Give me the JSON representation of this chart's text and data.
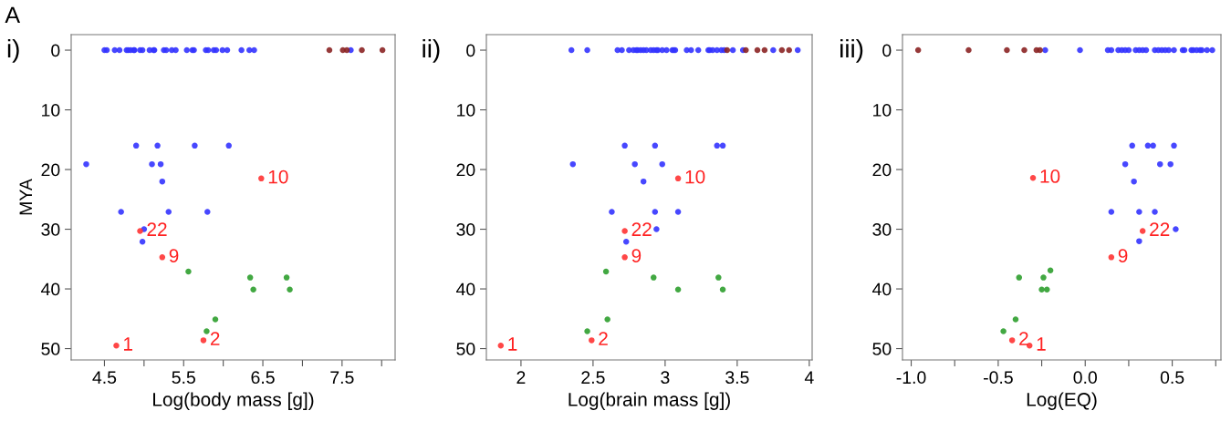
{
  "chart_data": [
    {
      "type": "scatter",
      "title": "i)",
      "xlabel": "Log(body mass [g])",
      "ylabel": "MYA",
      "annotations": [
        "A",
        {
          "text": "10",
          "x": 6.48,
          "y": 21.5
        },
        {
          "text": "22",
          "x": 4.95,
          "y": 30.3
        },
        {
          "text": "9",
          "x": 5.23,
          "y": 34.7
        },
        {
          "text": "2",
          "x": 5.75,
          "y": 48.6
        },
        {
          "text": "1",
          "x": 4.65,
          "y": 49.5
        }
      ],
      "xlim": [
        4.08,
        8.17
      ],
      "xticks": [
        4.5,
        {
          "value": 5,
          "label": null
        },
        5.5,
        {
          "value": 6,
          "label": null
        },
        6.5,
        {
          "value": 7,
          "label": null
        },
        7.5,
        {
          "value": 8,
          "label": null
        }
      ],
      "ylim": [
        51.9,
        -2.6
      ],
      "yticks": [
        0,
        10,
        20,
        30,
        40,
        50
      ],
      "grid": false,
      "legend": false,
      "marker": "circle",
      "series": [
        {
          "color": "#3333ff",
          "x": [
            4.5,
            4.53,
            4.63,
            4.69,
            4.78,
            4.8,
            4.83,
            4.87,
            4.88,
            4.95,
            4.98,
            5.07,
            5.12,
            5.13,
            5.25,
            5.28,
            5.35,
            5.4,
            5.54,
            5.61,
            5.63,
            5.78,
            5.81,
            5.88,
            5.91,
            5.99,
            6.05,
            6.23,
            6.33,
            6.39,
            7.61,
            4.27,
            4.9,
            5.17,
            5.64,
            6.07,
            5.1,
            5.21,
            5.23,
            4.71,
            5.31,
            5.8,
            5.0,
            4.98
          ],
          "values": [
            0,
            0,
            0,
            0,
            0,
            0,
            0,
            0,
            0,
            0,
            0,
            0,
            0,
            0,
            0,
            0,
            0,
            0,
            0,
            0,
            0,
            0,
            0,
            0,
            0,
            0,
            0,
            0,
            0,
            0,
            0,
            19.1,
            16.0,
            16.0,
            16.0,
            16.0,
            19.1,
            19.1,
            22.0,
            27.1,
            27.1,
            27.1,
            30.0,
            32.1
          ]
        },
        {
          "color": "#8b2323",
          "x": [
            7.34,
            7.51,
            7.56,
            7.75,
            8.01
          ],
          "values": [
            0,
            0,
            0,
            0,
            0
          ]
        },
        {
          "color": "#2e9e2e",
          "x": [
            5.56,
            6.34,
            6.8,
            6.38,
            6.84,
            5.9,
            5.79
          ],
          "values": [
            37.1,
            38.1,
            38.1,
            40.1,
            40.1,
            45.1,
            47.1
          ]
        },
        {
          "color": "#ff3333",
          "x": [
            6.48,
            4.95,
            5.23,
            5.75,
            4.65
          ],
          "values": [
            21.5,
            30.3,
            34.7,
            48.6,
            49.5
          ]
        }
      ]
    },
    {
      "type": "scatter",
      "title": "ii)",
      "xlabel": "Log(brain mass [g])",
      "annotations": [
        {
          "text": "10",
          "x": 3.09,
          "y": 21.5
        },
        {
          "text": "22",
          "x": 2.72,
          "y": 30.3
        },
        {
          "text": "9",
          "x": 2.72,
          "y": 34.7
        },
        {
          "text": "2",
          "x": 2.49,
          "y": 48.6
        },
        {
          "text": "1",
          "x": 1.86,
          "y": 49.5
        }
      ],
      "xlim": [
        1.76,
        4.02
      ],
      "xticks": [
        2,
        2.5,
        3,
        3.5,
        4
      ],
      "ylim": [
        51.9,
        -2.6
      ],
      "yticks": [
        0,
        10,
        20,
        30,
        40,
        50
      ],
      "grid": false,
      "legend": false,
      "marker": "circle",
      "series": [
        {
          "color": "#3333ff",
          "x": [
            2.35,
            2.46,
            2.67,
            2.7,
            2.75,
            2.78,
            2.8,
            2.81,
            2.83,
            2.85,
            2.87,
            2.9,
            2.92,
            2.94,
            2.95,
            2.98,
            3.01,
            3.05,
            3.06,
            3.07,
            3.15,
            3.18,
            3.23,
            3.3,
            3.31,
            3.33,
            3.36,
            3.39,
            3.41,
            3.47,
            3.54,
            3.75,
            3.92,
            2.72,
            2.93,
            3.36,
            3.4,
            2.36,
            2.79,
            2.98,
            2.85,
            2.63,
            2.93,
            3.09,
            2.94,
            2.73
          ],
          "values": [
            0,
            0,
            0,
            0,
            0,
            0,
            0,
            0,
            0,
            0,
            0,
            0,
            0,
            0,
            0,
            0,
            0,
            0,
            0,
            0,
            0,
            0,
            0,
            0,
            0,
            0,
            0,
            0,
            0,
            0,
            0,
            0,
            0,
            16.0,
            16.0,
            16.0,
            16.0,
            19.1,
            19.1,
            19.1,
            22.0,
            27.1,
            27.1,
            27.1,
            30.0,
            32.1
          ]
        },
        {
          "color": "#8b2323",
          "x": [
            3.43,
            3.56,
            3.64,
            3.69,
            3.81,
            3.86
          ],
          "values": [
            0,
            0,
            0,
            0,
            0,
            0
          ]
        },
        {
          "color": "#2e9e2e",
          "x": [
            2.59,
            2.92,
            3.37,
            3.09,
            3.4,
            2.6,
            2.46
          ],
          "values": [
            37.1,
            38.1,
            38.1,
            40.1,
            40.1,
            45.1,
            47.1
          ]
        },
        {
          "color": "#ff3333",
          "x": [
            3.09,
            2.72,
            2.72,
            2.49,
            1.86
          ],
          "values": [
            21.5,
            30.3,
            34.7,
            48.6,
            49.5
          ]
        }
      ]
    },
    {
      "type": "scatter",
      "title": "iii)",
      "xlabel": "Log(EQ)",
      "annotations": [
        {
          "text": "10",
          "x": -0.3,
          "y": 21.4
        },
        {
          "text": "22",
          "x": 0.33,
          "y": 30.3
        },
        {
          "text": "9",
          "x": 0.15,
          "y": 34.7
        },
        {
          "text": "2",
          "x": -0.42,
          "y": 48.6
        },
        {
          "text": "1",
          "x": -0.32,
          "y": 49.5
        }
      ],
      "xlim": [
        -1.05,
        0.78
      ],
      "xticks": [
        {
          "value": -1.0,
          "label": "-1.0"
        },
        {
          "value": -0.75,
          "label": null
        },
        -0.5,
        {
          "value": -0.25,
          "label": null
        },
        {
          "value": 0,
          "label": "0.0"
        },
        {
          "value": 0.25,
          "label": null
        },
        0.5,
        {
          "value": 0.75,
          "label": null
        }
      ],
      "ylim": [
        51.9,
        -2.6
      ],
      "yticks": [
        0,
        10,
        20,
        30,
        40,
        50
      ],
      "grid": false,
      "legend": false,
      "marker": "circle",
      "series": [
        {
          "color": "#3333ff",
          "x": [
            -0.23,
            -0.03,
            0.13,
            0.15,
            0.19,
            0.21,
            0.23,
            0.25,
            0.29,
            0.31,
            0.33,
            0.35,
            0.4,
            0.42,
            0.44,
            0.46,
            0.48,
            0.51,
            0.56,
            0.57,
            0.61,
            0.62,
            0.64,
            0.66,
            0.67,
            0.7,
            0.73,
            0.27,
            0.36,
            0.39,
            0.51,
            0.23,
            0.43,
            0.49,
            0.28,
            0.15,
            0.31,
            0.4,
            0.52,
            0.31
          ],
          "values": [
            0,
            0,
            0,
            0,
            0,
            0,
            0,
            0,
            0,
            0,
            0,
            0,
            0,
            0,
            0,
            0,
            0,
            0,
            0,
            0,
            0,
            0,
            0,
            0,
            0,
            0,
            0,
            16.0,
            16.0,
            16.0,
            16.0,
            19.1,
            19.1,
            19.1,
            22.0,
            27.1,
            27.1,
            27.1,
            30.0,
            32.0
          ]
        },
        {
          "color": "#8b2323",
          "x": [
            -0.96,
            -0.67,
            -0.45,
            -0.35,
            -0.28,
            -0.26
          ],
          "values": [
            0,
            0,
            0,
            0,
            0,
            0
          ]
        },
        {
          "color": "#2e9e2e",
          "x": [
            -0.2,
            -0.38,
            -0.24,
            -0.25,
            -0.22,
            -0.4,
            -0.47
          ],
          "values": [
            36.9,
            38.1,
            38.1,
            40.1,
            40.1,
            45.1,
            47.1
          ]
        },
        {
          "color": "#ff3333",
          "x": [
            -0.3,
            0.33,
            0.15,
            -0.42,
            -0.32
          ],
          "values": [
            21.4,
            30.3,
            34.7,
            48.6,
            49.5
          ]
        }
      ]
    }
  ]
}
